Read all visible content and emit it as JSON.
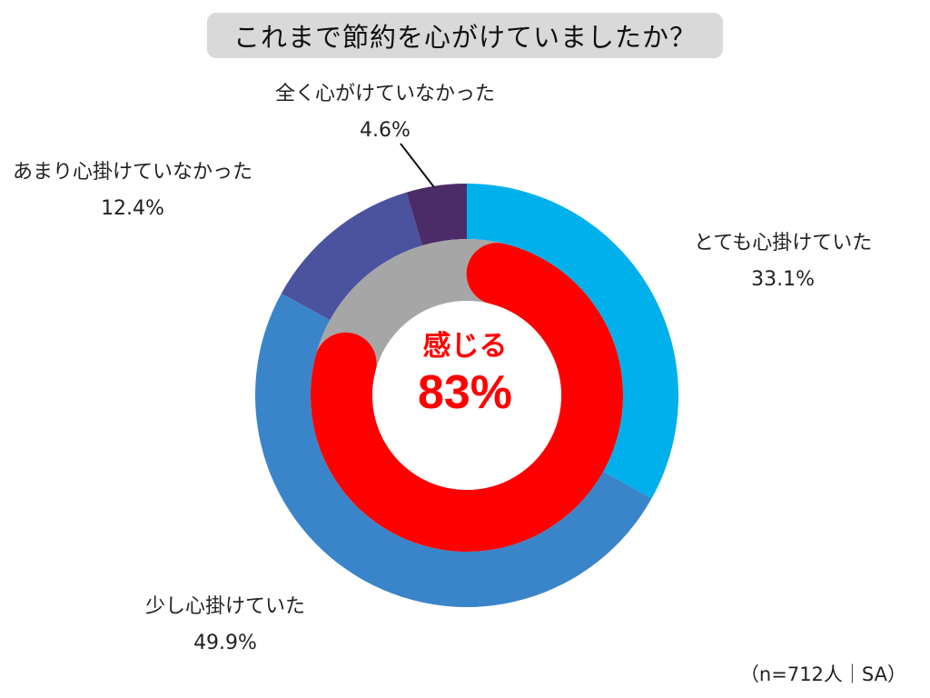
{
  "chart_data": {
    "type": "pie",
    "title": "これまで節約を心がけていましたか？",
    "note": "（n=712人｜SA）",
    "outer": [
      {
        "label": "とても心掛けていた",
        "value_text": "33.1%",
        "value": 33.1,
        "color": "#00b0eb"
      },
      {
        "label": "少し心掛けていた",
        "value_text": "49.9%",
        "value": 49.9,
        "color": "#3a85c9"
      },
      {
        "label": "あまり心掛けていなかった",
        "value_text": "12.4%",
        "value": 12.4,
        "color": "#4b529e"
      },
      {
        "label": "全く心がけていなかった",
        "value_text": "4.6%",
        "value": 4.6,
        "color": "#4b2c67"
      }
    ],
    "inner": {
      "label": "感じる",
      "value_text": "83%",
      "value": 83,
      "color": "#ff0000",
      "remainder_color": "#a6a6a6"
    }
  }
}
